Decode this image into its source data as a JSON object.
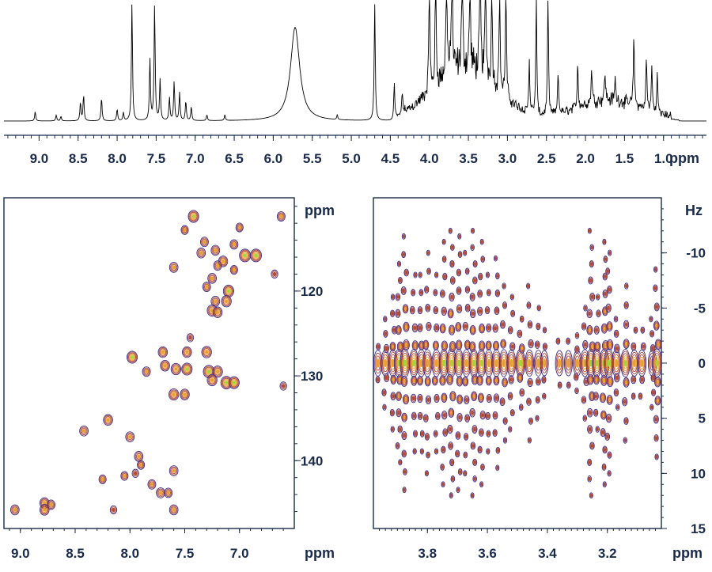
{
  "chart_data": [
    {
      "type": "line",
      "id": "spectrum-1d",
      "xlabel": "ppm",
      "x_reversed": true,
      "xlim": [
        9.45,
        0.45
      ],
      "tick_values": [
        9.0,
        8.5,
        8.0,
        7.5,
        7.0,
        6.5,
        6.0,
        5.5,
        5.0,
        4.5,
        4.0,
        3.5,
        3.0,
        2.5,
        2.0,
        1.5,
        1.0
      ],
      "tick_labels": [
        "9.0",
        "8.5",
        "8.0",
        "7.5",
        "7.0",
        "6.5",
        "6.0",
        "5.5",
        "5.0",
        "4.5",
        "4.0",
        "3.5",
        "3.0",
        "2.5",
        "2.0",
        "1.5",
        "1.0"
      ],
      "baseline_level": 0.0,
      "peaks": [
        {
          "ppm": 9.05,
          "height": 0.08
        },
        {
          "ppm": 8.78,
          "height": 0.05
        },
        {
          "ppm": 8.72,
          "height": 0.04
        },
        {
          "ppm": 8.47,
          "height": 0.16
        },
        {
          "ppm": 8.43,
          "height": 0.22
        },
        {
          "ppm": 8.2,
          "height": 0.2
        },
        {
          "ppm": 8.0,
          "height": 0.1
        },
        {
          "ppm": 7.92,
          "height": 0.07
        },
        {
          "ppm": 7.81,
          "height": 1.0
        },
        {
          "ppm": 7.58,
          "height": 0.52
        },
        {
          "ppm": 7.52,
          "height": 1.0
        },
        {
          "ppm": 7.45,
          "height": 0.35
        },
        {
          "ppm": 7.33,
          "height": 0.2
        },
        {
          "ppm": 7.27,
          "height": 0.33
        },
        {
          "ppm": 7.2,
          "height": 0.24
        },
        {
          "ppm": 7.12,
          "height": 0.17
        },
        {
          "ppm": 7.05,
          "height": 0.12
        },
        {
          "ppm": 6.85,
          "height": 0.05
        },
        {
          "ppm": 6.62,
          "height": 0.05
        },
        {
          "ppm": 5.72,
          "height": 0.8,
          "width": 0.07
        },
        {
          "ppm": 5.18,
          "height": 0.04
        },
        {
          "ppm": 4.7,
          "height": 1.0
        },
        {
          "ppm": 4.45,
          "height": 0.3
        },
        {
          "ppm": 4.35,
          "height": 0.18
        },
        {
          "ppm": 4.0,
          "height": 1.0
        },
        {
          "ppm": 3.92,
          "height": 1.0
        },
        {
          "ppm": 3.78,
          "height": 1.0
        },
        {
          "ppm": 3.71,
          "height": 1.0
        },
        {
          "ppm": 3.58,
          "height": 0.9
        },
        {
          "ppm": 3.48,
          "height": 0.75
        },
        {
          "ppm": 3.35,
          "height": 1.0
        },
        {
          "ppm": 3.28,
          "height": 1.0
        },
        {
          "ppm": 3.2,
          "height": 0.85
        },
        {
          "ppm": 3.1,
          "height": 0.9
        },
        {
          "ppm": 3.02,
          "height": 1.0
        },
        {
          "ppm": 2.72,
          "height": 0.45
        },
        {
          "ppm": 2.63,
          "height": 1.0
        },
        {
          "ppm": 2.48,
          "height": 1.0
        },
        {
          "ppm": 2.35,
          "height": 0.35
        },
        {
          "ppm": 2.1,
          "height": 0.38
        },
        {
          "ppm": 1.92,
          "height": 0.3
        },
        {
          "ppm": 1.75,
          "height": 0.25
        },
        {
          "ppm": 1.62,
          "height": 0.18
        },
        {
          "ppm": 1.38,
          "height": 0.6
        },
        {
          "ppm": 1.22,
          "height": 0.45
        },
        {
          "ppm": 1.15,
          "height": 0.38
        },
        {
          "ppm": 1.08,
          "height": 0.32
        }
      ],
      "broad_humps": [
        {
          "from": 4.3,
          "to": 2.8,
          "height": 0.45
        },
        {
          "from": 2.45,
          "to": 0.95,
          "height": 0.15
        }
      ]
    },
    {
      "type": "scatter",
      "id": "hsqc-2d",
      "xlabel": "ppm",
      "ylabel": "ppm",
      "x_reversed": true,
      "xlim": [
        9.15,
        6.5
      ],
      "ylim": [
        109,
        148
      ],
      "x_tick_values": [
        9.0,
        8.5,
        8.0,
        7.5,
        7.0
      ],
      "x_tick_labels": [
        "9.0",
        "8.5",
        "8.0",
        "7.5",
        "7.0"
      ],
      "y_tick_values": [
        120,
        130,
        140
      ],
      "y_tick_labels": [
        "120",
        "130",
        "140"
      ],
      "points": [
        {
          "x": 7.42,
          "y": 111.2,
          "i": 0.9
        },
        {
          "x": 6.62,
          "y": 111.2,
          "i": 0.5
        },
        {
          "x": 7.0,
          "y": 112.5,
          "i": 0.4
        },
        {
          "x": 7.5,
          "y": 112.8,
          "i": 0.4
        },
        {
          "x": 7.32,
          "y": 114.2,
          "i": 0.5
        },
        {
          "x": 7.05,
          "y": 114.5,
          "i": 0.5
        },
        {
          "x": 7.35,
          "y": 115.5,
          "i": 0.6
        },
        {
          "x": 7.22,
          "y": 115.2,
          "i": 0.6
        },
        {
          "x": 6.95,
          "y": 115.8,
          "i": 1.0
        },
        {
          "x": 6.85,
          "y": 115.8,
          "i": 1.0
        },
        {
          "x": 7.15,
          "y": 116.5,
          "i": 0.7
        },
        {
          "x": 7.6,
          "y": 117.2,
          "i": 0.6
        },
        {
          "x": 7.2,
          "y": 117.0,
          "i": 0.5
        },
        {
          "x": 7.05,
          "y": 117.5,
          "i": 0.4
        },
        {
          "x": 7.25,
          "y": 118.5,
          "i": 0.6
        },
        {
          "x": 6.68,
          "y": 118.0,
          "i": 0.3
        },
        {
          "x": 7.3,
          "y": 119.5,
          "i": 0.5
        },
        {
          "x": 7.1,
          "y": 120.0,
          "i": 0.9
        },
        {
          "x": 7.22,
          "y": 121.2,
          "i": 0.6
        },
        {
          "x": 7.12,
          "y": 121.2,
          "i": 0.8
        },
        {
          "x": 7.25,
          "y": 122.3,
          "i": 0.8
        },
        {
          "x": 7.2,
          "y": 122.5,
          "i": 0.7
        },
        {
          "x": 7.45,
          "y": 125.5,
          "i": 0.3
        },
        {
          "x": 7.7,
          "y": 127.2,
          "i": 0.7
        },
        {
          "x": 7.48,
          "y": 127.2,
          "i": 0.7
        },
        {
          "x": 7.3,
          "y": 127.2,
          "i": 0.8
        },
        {
          "x": 7.98,
          "y": 127.8,
          "i": 0.9
        },
        {
          "x": 7.68,
          "y": 128.8,
          "i": 0.7
        },
        {
          "x": 7.58,
          "y": 129.2,
          "i": 0.8
        },
        {
          "x": 7.48,
          "y": 129.2,
          "i": 0.9
        },
        {
          "x": 7.28,
          "y": 129.5,
          "i": 1.0
        },
        {
          "x": 7.2,
          "y": 129.5,
          "i": 0.8
        },
        {
          "x": 7.85,
          "y": 129.5,
          "i": 0.5
        },
        {
          "x": 7.25,
          "y": 130.5,
          "i": 0.8
        },
        {
          "x": 7.12,
          "y": 130.8,
          "i": 1.0
        },
        {
          "x": 7.05,
          "y": 130.8,
          "i": 0.9
        },
        {
          "x": 6.6,
          "y": 131.2,
          "i": 0.3
        },
        {
          "x": 7.6,
          "y": 132.2,
          "i": 0.8
        },
        {
          "x": 7.5,
          "y": 132.2,
          "i": 0.7
        },
        {
          "x": 8.2,
          "y": 135.2,
          "i": 0.7
        },
        {
          "x": 8.42,
          "y": 136.5,
          "i": 0.6
        },
        {
          "x": 8.0,
          "y": 137.2,
          "i": 0.6
        },
        {
          "x": 7.92,
          "y": 139.5,
          "i": 0.6
        },
        {
          "x": 7.9,
          "y": 140.5,
          "i": 0.4
        },
        {
          "x": 7.6,
          "y": 141.2,
          "i": 0.6
        },
        {
          "x": 8.25,
          "y": 142.2,
          "i": 0.4
        },
        {
          "x": 8.05,
          "y": 141.8,
          "i": 0.4
        },
        {
          "x": 7.95,
          "y": 141.5,
          "i": 0.3
        },
        {
          "x": 7.8,
          "y": 142.8,
          "i": 0.5
        },
        {
          "x": 7.72,
          "y": 143.8,
          "i": 0.6
        },
        {
          "x": 7.65,
          "y": 143.8,
          "i": 0.5
        },
        {
          "x": 8.78,
          "y": 145.0,
          "i": 0.7
        },
        {
          "x": 8.72,
          "y": 145.2,
          "i": 0.5
        },
        {
          "x": 9.05,
          "y": 145.8,
          "i": 0.6
        },
        {
          "x": 8.78,
          "y": 145.8,
          "i": 0.7
        },
        {
          "x": 8.15,
          "y": 145.8,
          "i": 0.3
        },
        {
          "x": 7.6,
          "y": 145.8,
          "i": 0.6
        }
      ]
    },
    {
      "type": "heatmap",
      "id": "jres-2d",
      "xlabel": "ppm",
      "ylabel": "Hz",
      "x_reversed": true,
      "xlim": [
        3.98,
        3.02
      ],
      "ylim": [
        -15,
        15
      ],
      "x_tick_values": [
        3.8,
        3.6,
        3.4,
        3.2
      ],
      "x_tick_labels": [
        "3.8",
        "3.6",
        "3.4",
        "3.2"
      ],
      "y_tick_values": [
        -10,
        -5,
        0,
        5,
        10,
        15
      ],
      "y_tick_labels": [
        "-10",
        "-5",
        "0",
        "5",
        "10",
        "15"
      ],
      "multiplets": [
        {
          "ppm": 3.965,
          "spread": 1.5,
          "i": 0.6
        },
        {
          "ppm": 3.94,
          "spread": 4.0,
          "i": 0.7
        },
        {
          "ppm": 3.915,
          "spread": 6.0,
          "i": 0.8
        },
        {
          "ppm": 3.895,
          "spread": 9.0,
          "i": 0.9
        },
        {
          "ppm": 3.875,
          "spread": 11.5,
          "i": 1.0
        },
        {
          "ppm": 3.845,
          "spread": 8.0,
          "i": 0.9
        },
        {
          "ppm": 3.82,
          "spread": 8.0,
          "i": 0.8
        },
        {
          "ppm": 3.8,
          "spread": 10.0,
          "i": 0.8
        },
        {
          "ppm": 3.77,
          "spread": 8.0,
          "i": 0.8
        },
        {
          "ppm": 3.745,
          "spread": 11.0,
          "i": 0.9
        },
        {
          "ppm": 3.72,
          "spread": 12.0,
          "i": 1.0
        },
        {
          "ppm": 3.695,
          "spread": 11.5,
          "i": 0.9
        },
        {
          "ppm": 3.67,
          "spread": 10.0,
          "i": 0.8
        },
        {
          "ppm": 3.645,
          "spread": 12.0,
          "i": 0.9
        },
        {
          "ppm": 3.62,
          "spread": 11.0,
          "i": 0.9
        },
        {
          "ppm": 3.595,
          "spread": 8.0,
          "i": 0.8
        },
        {
          "ppm": 3.57,
          "spread": 9.5,
          "i": 0.8
        },
        {
          "ppm": 3.545,
          "spread": 7.0,
          "i": 0.8
        },
        {
          "ppm": 3.52,
          "spread": 6.0,
          "i": 0.7
        },
        {
          "ppm": 3.49,
          "spread": 4.0,
          "i": 0.9
        },
        {
          "ppm": 3.46,
          "spread": 7.0,
          "i": 0.7
        },
        {
          "ppm": 3.43,
          "spread": 5.0,
          "i": 0.6
        },
        {
          "ppm": 3.41,
          "spread": 3.0,
          "i": 0.5
        },
        {
          "ppm": 3.36,
          "spread": 2.0,
          "i": 0.5
        },
        {
          "ppm": 3.33,
          "spread": 2.0,
          "i": 0.5
        },
        {
          "ppm": 3.3,
          "spread": 2.5,
          "i": 0.6
        },
        {
          "ppm": 3.275,
          "spread": 5.0,
          "i": 0.8
        },
        {
          "ppm": 3.255,
          "spread": 12.0,
          "i": 0.9
        },
        {
          "ppm": 3.235,
          "spread": 6.0,
          "i": 0.9
        },
        {
          "ppm": 3.21,
          "spread": 11.0,
          "i": 1.0
        },
        {
          "ppm": 3.195,
          "spread": 10.0,
          "i": 1.0
        },
        {
          "ppm": 3.17,
          "spread": 4.0,
          "i": 0.8
        },
        {
          "ppm": 3.14,
          "spread": 7.0,
          "i": 0.9
        },
        {
          "ppm": 3.11,
          "spread": 3.0,
          "i": 0.7
        },
        {
          "ppm": 3.085,
          "spread": 3.0,
          "i": 0.7
        },
        {
          "ppm": 3.05,
          "spread": 4.0,
          "i": 0.6
        },
        {
          "ppm": 3.035,
          "spread": 8.5,
          "i": 1.0
        }
      ]
    }
  ],
  "colors": {
    "axis": "#1a2a4a",
    "trace": "#000000",
    "contour_low": "#3c2f8c",
    "contour_mid": "#b04a3a",
    "contour_high": "#e8a030",
    "contour_peak": "#9fd836"
  }
}
